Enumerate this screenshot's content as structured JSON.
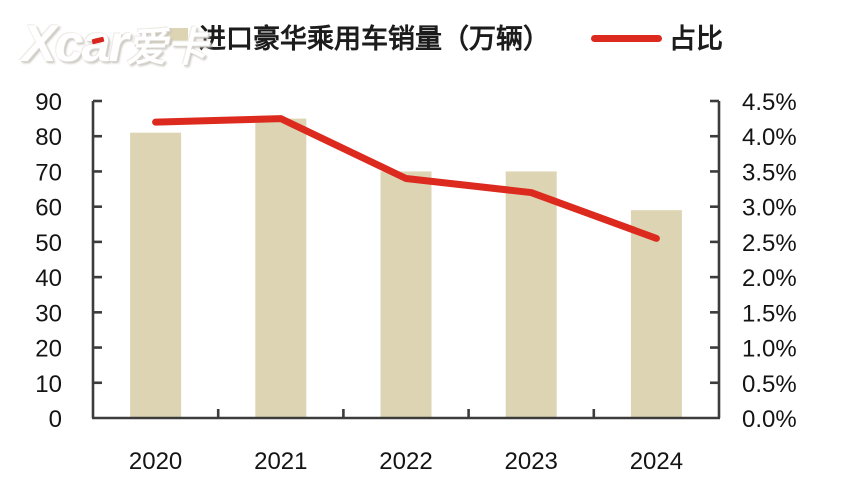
{
  "watermark": {
    "brand": "Xcar",
    "cn": "爱卡"
  },
  "legend": {
    "bar_label": "进口豪华乘用车销量（万辆）",
    "line_label": "占比"
  },
  "chart_data": {
    "type": "bar",
    "categories": [
      "2020",
      "2021",
      "2022",
      "2023",
      "2024"
    ],
    "series": [
      {
        "name": "进口豪华乘用车销量（万辆）",
        "type": "bar",
        "axis": "left",
        "values": [
          81,
          85,
          70,
          70,
          59
        ]
      },
      {
        "name": "占比",
        "type": "line",
        "axis": "right",
        "values": [
          4.2,
          4.25,
          3.4,
          3.2,
          2.55
        ]
      }
    ],
    "left_axis": {
      "min": 0,
      "max": 90,
      "tick_labels": [
        "0",
        "10",
        "20",
        "30",
        "40",
        "50",
        "60",
        "70",
        "80",
        "90"
      ]
    },
    "right_axis": {
      "min": 0,
      "max": 4.5,
      "tick_labels": [
        "0.0%",
        "0.5%",
        "1.0%",
        "1.5%",
        "2.0%",
        "2.5%",
        "3.0%",
        "3.5%",
        "4.0%",
        "4.5%"
      ]
    },
    "colors": {
      "bar": "#ddd4b3",
      "line": "#dc2a1e",
      "axis": "#3c3c3c",
      "text": "#141414"
    },
    "legend_position": "top",
    "grid": false
  }
}
